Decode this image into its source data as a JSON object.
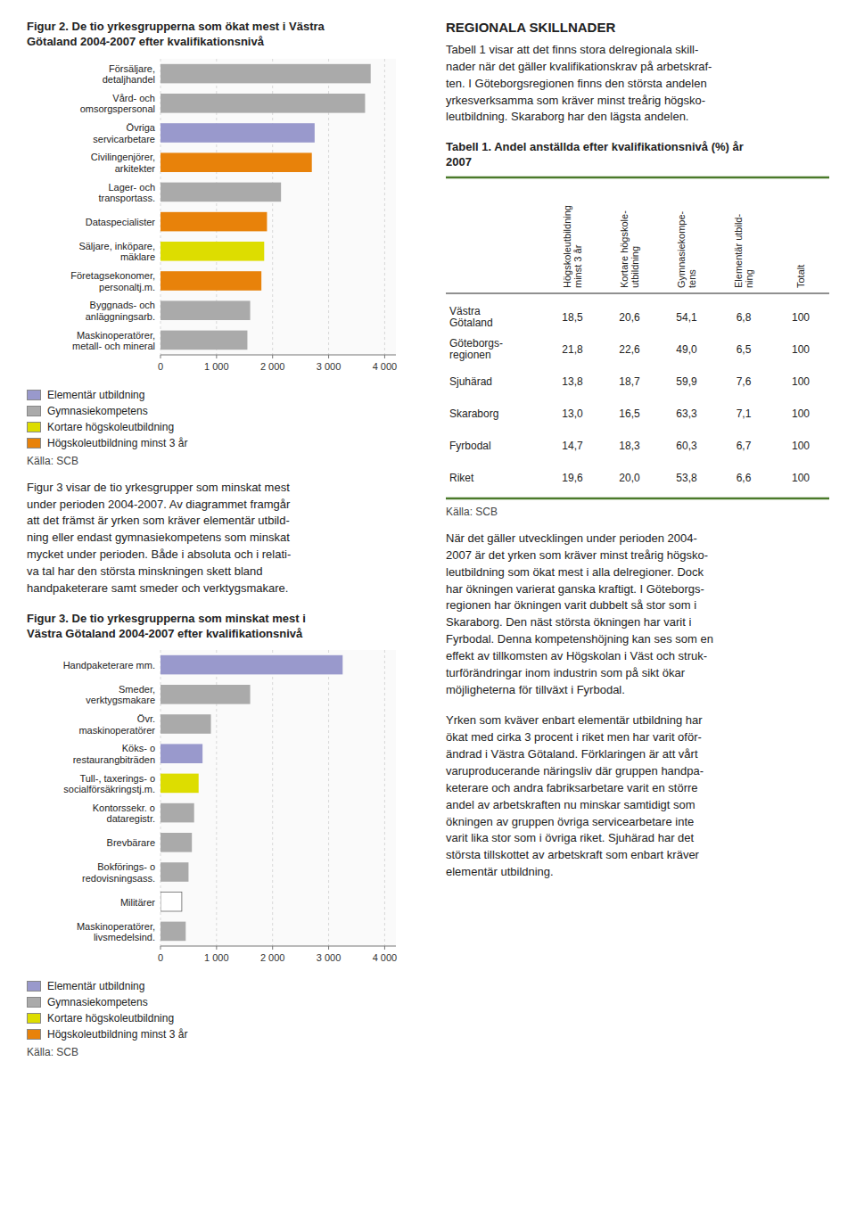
{
  "chart_data": [
    {
      "type": "bar",
      "orientation": "horizontal",
      "stacked": true,
      "title": "Figur 2. De tio yrkesgrupperna som ökat mest i Västra\nGötaland 2004-2007 efter kvalifikationsnivå",
      "categories": [
        "Försäljare,\ndetaljhandel",
        "Vård- och\nomsorgspersonal",
        "Övriga\nservicarbetare",
        "Civilingenjörer,\narkitekter",
        "Lager- och\ntransportass.",
        "Dataspecialister",
        "Säljare, inköpare,\nmäklare",
        "Företagsekonomer,\npersonaltj.m.",
        "Byggnads- och\nanläggningsarb.",
        "Maskinoperatörer,\nmetall- och mineral"
      ],
      "series": [
        {
          "name": "Elementär utbildning",
          "color": "#9999cc",
          "values": [
            null,
            null,
            2750,
            null,
            null,
            null,
            null,
            null,
            null,
            null
          ]
        },
        {
          "name": "Gymnasiekompetens",
          "color": "#aaaaaa",
          "values": [
            3750,
            3650,
            null,
            null,
            2150,
            null,
            null,
            null,
            1600,
            1550
          ]
        },
        {
          "name": "Kortare högskoleutbildning",
          "color": "#dddd00",
          "values": [
            null,
            null,
            null,
            null,
            null,
            null,
            1850,
            null,
            null,
            null
          ]
        },
        {
          "name": "Högskoleutbildning minst 3 år",
          "color": "#e8820a",
          "values": [
            null,
            null,
            null,
            2700,
            null,
            1900,
            null,
            1800,
            null,
            null
          ]
        }
      ],
      "xlim": [
        0,
        4200
      ],
      "xticks": [
        0,
        {
          "value": 1000,
          "label": "1 000"
        },
        {
          "value": 2000,
          "label": "2 000"
        },
        {
          "value": 3000,
          "label": "3 000"
        },
        {
          "value": 4000,
          "label": "4 000"
        }
      ],
      "grid": true,
      "legend": "bottom",
      "annotations": [
        "Källa: SCB"
      ]
    },
    {
      "type": "bar",
      "orientation": "horizontal",
      "stacked": true,
      "title": "Figur 3. De tio yrkesgrupperna som minskat mest i\nVästra Götaland 2004-2007 efter kvalifikationsnivå",
      "categories": [
        "Handpaketerare mm.",
        "Smeder,\nverktygsmakare",
        "Övr.\nmaskinoperatörer",
        "Köks- o\nrestaurangbiträden",
        "Tull-, taxerings- o\nsocialförsäkringstj.m.",
        "Kontorssekr. o\ndataregistr.",
        "Brevbärare",
        "Bokförings- o\nredovisningsass.",
        "Militärer",
        "Maskinoperatörer,\nlivsmedelsind."
      ],
      "series": [
        {
          "name": "Elementär utbildning",
          "color": "#9999cc",
          "values": [
            3250,
            null,
            null,
            750,
            null,
            null,
            null,
            null,
            null,
            null
          ]
        },
        {
          "name": "Gymnasiekompetens",
          "color": "#aaaaaa",
          "values": [
            null,
            1600,
            900,
            null,
            null,
            600,
            560,
            500,
            null,
            450
          ]
        },
        {
          "name": "Kortare högskoleutbildning",
          "color": "#dddd00",
          "values": [
            null,
            null,
            null,
            null,
            680,
            null,
            null,
            null,
            null,
            null
          ]
        },
        {
          "name": "Högskoleutbildning minst 3 år",
          "color": "#e8820a",
          "values": [
            null,
            null,
            null,
            null,
            null,
            null,
            null,
            null,
            null,
            null
          ]
        },
        {
          "color": "#ffffff",
          "values": [
            null,
            null,
            null,
            null,
            null,
            null,
            null,
            null,
            380,
            null
          ]
        }
      ],
      "xlim": [
        0,
        4200
      ],
      "xticks": [
        0,
        {
          "value": 1000,
          "label": "1 000"
        },
        {
          "value": 2000,
          "label": "2 000"
        },
        {
          "value": 3000,
          "label": "3 000"
        },
        {
          "value": 4000,
          "label": "4 000"
        }
      ],
      "grid": true,
      "legend": "bottom",
      "annotations": [
        "Källa: SCB"
      ]
    },
    {
      "type": "table",
      "title": "Tabell 1. Andel anställda efter kvalifikationsnivå (%) år\n2007",
      "columns": [
        "Högskoleutbildning\nminst 3 år",
        "Kortare högskole-\nutbildning",
        "Gymnasiekompe-\ntens",
        "Elementär utbild-\nning",
        "Totalt"
      ],
      "rows": [
        [
          "Västra\nGötaland",
          "18,5",
          "20,6",
          "54,1",
          "6,8",
          "100"
        ],
        [
          "Göteborgs-\nregionen",
          "21,8",
          "22,6",
          "49,0",
          "6,5",
          "100"
        ],
        [
          "Sjuhärad",
          "13,8",
          "18,7",
          "59,9",
          "7,6",
          "100"
        ],
        [
          "Skaraborg",
          "13,0",
          "16,5",
          "63,3",
          "7,1",
          "100"
        ],
        [
          "Fyrbodal",
          "14,7",
          "18,3",
          "60,3",
          "6,7",
          "100"
        ],
        [
          "Riket",
          "19,6",
          "20,0",
          "53,8",
          "6,6",
          "100"
        ]
      ],
      "annotations": [
        "Källa: SCB"
      ]
    }
  ],
  "page_texts": {
    "regional_title": "REGIONALA SKILLNADER",
    "regional_text": "Tabell 1 visar att det finns stora delregionala skill-\nnader när det gäller kvalifikationskrav på arbetskraf-\nten.  I Göteborgsregionen finns den största andelen\nyrkesverksamma som kräver minst treårig högsko-\nleutbildning. Skaraborg har den lägsta andelen.",
    "fig3_text": "Figur 3 visar de tio yrkesgrupper som minskat mest\nunder perioden 2004-2007. Av diagrammet framgår\natt det främst är yrken som kräver elementär utbild-\nning eller endast gymnasiekompetens som minskat\nmycket under perioden. Både i absoluta och i relati-\nva tal har den största minskningen skett bland\nhandpaketerare samt smeder och verktygsmakare.",
    "right_text2": "När det gäller utvecklingen under perioden 2004-\n2007 är det yrken som kräver minst treårig högsko-\nleutbildning som ökat mest i alla delregioner.  Dock\nhar ökningen varierat ganska kraftigt.  I Göteborgs-\nregionen har ökningen varit dubbelt så stor som i\nSkaraborg. Den näst största ökningen har varit i\nFyrbodal. Denna kompetenshöjning kan ses som en\neffekt av tillkomsten av Högskolan i Väst och struk-\nturförändringar inom industrin som på sikt ökar\nmöjligheterna för tillväxt i Fyrbodal.",
    "right_text3": "Yrken som kväver enbart elementär utbildning har\nökat med cirka 3 procent i riket men har varit oför-\nändrad i Västra Götaland. Förklaringen är att vårt\nvaruproducerande näringsliv där gruppen handpa-\nketerare och andra fabriksarbetare varit en större\nandel av arbetskraften nu minskar samtidigt som\nökningen av gruppen övriga servicearbetare inte\nvarit lika stor som i övriga riket.  Sjuhärad har det\nstörsta tillskottet av arbetskraft som enbart kräver\nelementär utbildning."
  }
}
